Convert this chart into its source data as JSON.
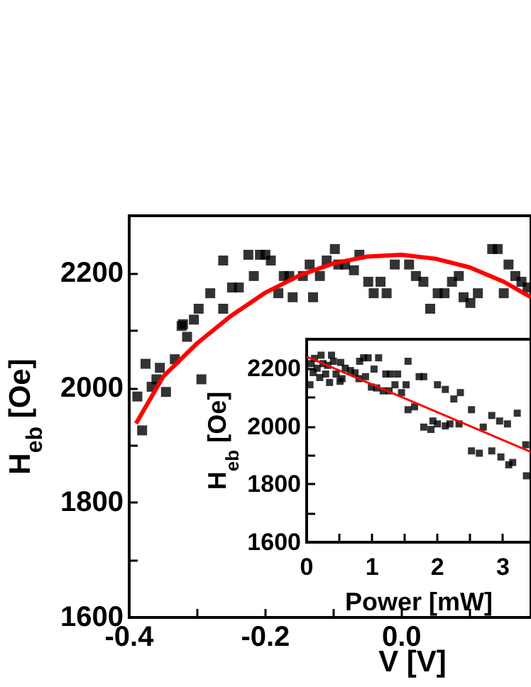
{
  "chart_data": [
    {
      "type": "scatter",
      "xlabel": "V [V]",
      "ylabel": "H$_{eb}$ [Oe]",
      "xlim": [
        -0.4,
        0.19
      ],
      "ylim": [
        1600,
        2300
      ],
      "xticks": [
        -0.4,
        {
          "value": -0.3,
          "label": null
        },
        -0.2,
        {
          "value": -0.1,
          "label": null
        },
        {
          "value": 0,
          "label": "0.0"
        },
        {
          "value": 0.1,
          "label": null
        }
      ],
      "yticks": [
        1600,
        {
          "value": 1700,
          "label": null
        },
        1800,
        {
          "value": 1900,
          "label": null
        },
        2000,
        {
          "value": 2100,
          "label": null
        },
        2200
      ],
      "series": [
        {
          "marker": "square",
          "color": "#000000",
          "x": [
            -0.388,
            -0.381,
            -0.376,
            -0.367,
            -0.36,
            -0.355,
            -0.346,
            -0.333,
            -0.323,
            -0.321,
            -0.315,
            -0.305,
            -0.298,
            -0.294,
            -0.281,
            -0.262,
            -0.262,
            -0.249,
            -0.239,
            -0.225,
            -0.217,
            -0.208,
            -0.2,
            -0.192,
            -0.181,
            -0.173,
            -0.165,
            -0.16,
            -0.145,
            -0.135,
            -0.13,
            -0.12,
            -0.11,
            -0.098,
            -0.093,
            -0.083,
            -0.07,
            -0.062,
            -0.049,
            -0.041,
            -0.031,
            -0.022,
            -0.01,
            0.011,
            0.021,
            0.032,
            0.042,
            0.053,
            0.063,
            0.074,
            0.084,
            0.091,
            0.101,
            0.112,
            0.133,
            0.141,
            0.15,
            0.157,
            0.167,
            0.176,
            0.185
          ],
          "values": [
            1985,
            1926,
            2042,
            2002,
            2015,
            2035,
            1993,
            2050,
            2108,
            2111,
            2089,
            2119,
            2138,
            2015,
            2165,
            2138,
            2222,
            2175,
            2175,
            2232,
            2195,
            2232,
            2232,
            2222,
            2165,
            2195,
            2195,
            2158,
            2195,
            2215,
            2158,
            2195,
            2222,
            2242,
            2215,
            2215,
            2205,
            2232,
            2185,
            2165,
            2185,
            2165,
            2215,
            2215,
            2195,
            2185,
            2138,
            2165,
            2165,
            2185,
            2195,
            2158,
            2148,
            2165,
            2242,
            2242,
            2165,
            2215,
            2195,
            2185,
            2175
          ]
        },
        {
          "type": "line",
          "marker": "none",
          "color": "#ff0000",
          "x": [
            -0.39,
            -0.35,
            -0.3,
            -0.25,
            -0.2,
            -0.15,
            -0.1,
            -0.05,
            0,
            0.05,
            0.1,
            0.15,
            0.19
          ],
          "values": [
            1938,
            2020,
            2078,
            2126,
            2166,
            2196,
            2217,
            2229,
            2232,
            2225,
            2210,
            2185,
            2158
          ]
        }
      ]
    },
    {
      "type": "scatter",
      "xlabel": "Power [mW]",
      "ylabel": "H$_{eb}$ [Oe]",
      "xlim": [
        0,
        3.43
      ],
      "ylim": [
        1600,
        2300
      ],
      "xticks": [
        0,
        {
          "value": 0.5,
          "label": null
        },
        1,
        {
          "value": 1.5,
          "label": null
        },
        2,
        {
          "value": 2.5,
          "label": null
        },
        3
      ],
      "yticks": [
        1600,
        {
          "value": 1700,
          "label": null
        },
        1800,
        {
          "value": 1900,
          "label": null
        },
        2000,
        {
          "value": 2100,
          "label": null
        },
        2200
      ],
      "series": [
        {
          "marker": "square",
          "color": "#000000",
          "x": [
            0.05,
            0.07,
            0.1,
            0.12,
            0.16,
            0.2,
            0.22,
            0.25,
            0.29,
            0.32,
            0.35,
            0.38,
            0.41,
            0.45,
            0.51,
            0.52,
            0.54,
            0.59,
            0.67,
            0.74,
            0.8,
            0.81,
            0.87,
            0.94,
            0.9,
            0.99,
            1.03,
            1.1,
            1.07,
            1.17,
            1.21,
            1.28,
            1.39,
            1.26,
            1.35,
            1.45,
            1.52,
            1.55,
            1.55,
            1.65,
            1.72,
            1.79,
            1.79,
            1.9,
            1.93,
            2.0,
            2.12,
            2.19,
            2.0,
            2.12,
            2.25,
            2.35,
            2.33,
            2.52,
            2.52,
            2.64,
            2.7,
            2.83,
            2.83,
            2.95,
            2.97,
            3.07,
            3.09,
            3.15,
            3.22,
            3.35,
            3.36
          ],
          "values": [
            2143,
            2216,
            2185,
            2234,
            2200,
            2168,
            2245,
            2216,
            2180,
            2210,
            2151,
            2245,
            2224,
            2180,
            2155,
            2220,
            2164,
            2200,
            2192,
            2184,
            2164,
            2224,
            2236,
            2236,
            2171,
            2135,
            2197,
            2236,
            2132,
            2122,
            2180,
            2180,
            2180,
            2122,
            2143,
            2116,
            2143,
            2224,
            2057,
            2067,
            2171,
            2171,
            1997,
            1989,
            2018,
            2008,
            2001,
            2008,
            2143,
            2127,
            2094,
            2116,
            2008,
            2057,
            1915,
            1907,
            1997,
            2037,
            1915,
            2018,
            1894,
            2008,
            1867,
            1875,
            2045,
            1936,
            1829
          ]
        },
        {
          "type": "line",
          "marker": "none",
          "color": "#ff0000",
          "x": [
            0,
            3.43
          ],
          "values": [
            2240,
            1911
          ]
        }
      ]
    }
  ]
}
